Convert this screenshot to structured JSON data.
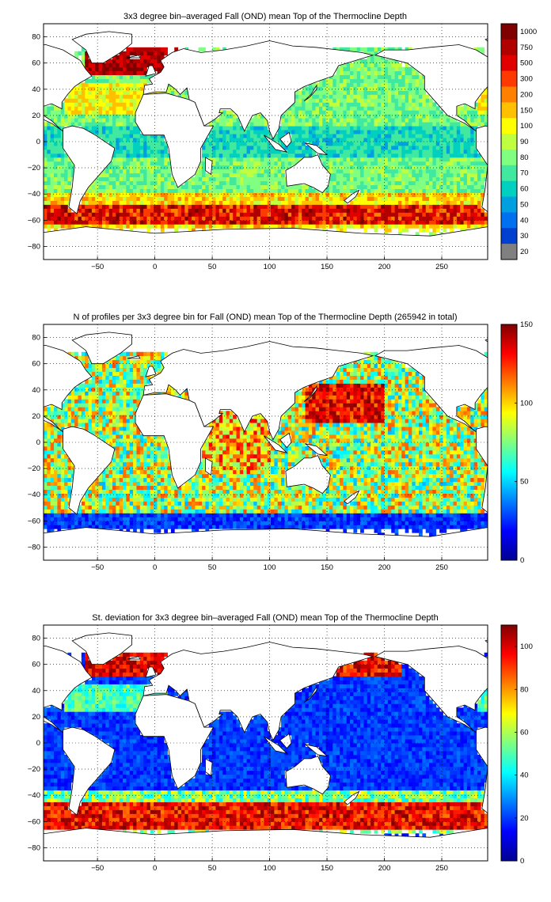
{
  "panels": [
    {
      "id": "mean",
      "title": "3x3 degree bin–averaged Fall (OND) mean Top of the Thermocline Depth",
      "x_ticks": [
        "−50",
        "0",
        "50",
        "100",
        "150",
        "200",
        "250"
      ],
      "y_ticks": [
        "80",
        "60",
        "40",
        "20",
        "0",
        "−20",
        "−40",
        "−60",
        "−80"
      ],
      "colorbar": {
        "type": "discrete",
        "labels": [
          "1000",
          "750",
          "500",
          "300",
          "200",
          "150",
          "100",
          "90",
          "80",
          "70",
          "60",
          "50",
          "40",
          "30",
          "20"
        ],
        "colors": [
          "#800000",
          "#b00000",
          "#e00000",
          "#ff3a00",
          "#ff8000",
          "#ffc000",
          "#ffff00",
          "#c0ff40",
          "#80ff80",
          "#40e8a0",
          "#00d0c0",
          "#00a0e0",
          "#0070f0",
          "#0040d0",
          "#808080"
        ]
      }
    },
    {
      "id": "count",
      "title": "N of profiles per 3x3 degree bin for Fall (OND) mean Top of the Thermocline Depth  (265942 in total)",
      "x_ticks": [
        "−50",
        "0",
        "50",
        "100",
        "150",
        "200",
        "250"
      ],
      "y_ticks": [
        "80",
        "60",
        "40",
        "20",
        "0",
        "−20",
        "−40",
        "−60",
        "−80"
      ],
      "colorbar": {
        "type": "continuous",
        "min": 0,
        "max": 150,
        "labels": [
          "150",
          "100",
          "50",
          "0"
        ],
        "label_values": [
          150,
          100,
          50,
          0
        ]
      }
    },
    {
      "id": "stdev",
      "title": "St. deviation for 3x3 degree bin–averaged Fall (OND) mean Top of the Thermocline Depth",
      "x_ticks": [
        "−50",
        "0",
        "50",
        "100",
        "150",
        "200",
        "250"
      ],
      "y_ticks": [
        "80",
        "60",
        "40",
        "20",
        "0",
        "−20",
        "−40",
        "−60",
        "−80"
      ],
      "colorbar": {
        "type": "continuous",
        "min": 0,
        "max": 110,
        "labels": [
          "100",
          "80",
          "60",
          "40",
          "20",
          "0"
        ],
        "label_values": [
          100,
          80,
          60,
          40,
          20,
          0
        ]
      }
    }
  ],
  "map": {
    "lon_range": [
      -97,
      290
    ],
    "lat_range": [
      -90,
      90
    ],
    "x_tick_values": [
      -50,
      0,
      50,
      100,
      150,
      200,
      250
    ],
    "y_tick_values": [
      80,
      60,
      40,
      20,
      0,
      -20,
      -40,
      -60,
      -80
    ],
    "grid": "dotted",
    "coastlines": true,
    "land_color": "#ffffff"
  },
  "jet_colormap": [
    "#00008f",
    "#0000ff",
    "#0080ff",
    "#00ffff",
    "#80ff80",
    "#ffff00",
    "#ff8000",
    "#ff0000",
    "#800000"
  ]
}
